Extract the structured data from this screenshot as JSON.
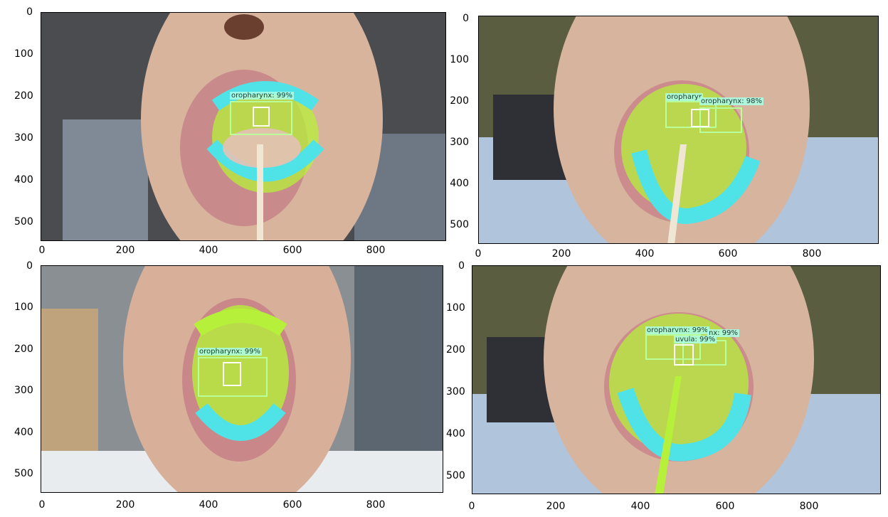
{
  "figure": {
    "panels": [
      {
        "id": "top-left",
        "x_ticks": [
          "0",
          "200",
          "400",
          "600",
          "800"
        ],
        "y_ticks": [
          "0",
          "100",
          "200",
          "300",
          "400",
          "500"
        ],
        "detections": [
          {
            "label": "oropharynx: 99%"
          }
        ]
      },
      {
        "id": "top-right",
        "x_ticks": [
          "0",
          "200",
          "400",
          "600",
          "800"
        ],
        "y_ticks": [
          "0",
          "100",
          "200",
          "300",
          "400",
          "500"
        ],
        "detections": [
          {
            "label": "oropharyr"
          },
          {
            "label": "oropharynx: 98%"
          }
        ]
      },
      {
        "id": "bottom-left",
        "x_ticks": [
          "0",
          "200",
          "400",
          "600",
          "800"
        ],
        "y_ticks": [
          "0",
          "100",
          "200",
          "300",
          "400",
          "500"
        ],
        "detections": [
          {
            "label": "oropharynx: 99%"
          }
        ]
      },
      {
        "id": "bottom-right",
        "x_ticks": [
          "0",
          "200",
          "400",
          "600",
          "800"
        ],
        "y_ticks": [
          "0",
          "100",
          "200",
          "300",
          "400",
          "500"
        ],
        "detections": [
          {
            "label": "oropharvnx: 99%"
          },
          {
            "label": "nx: 99%"
          },
          {
            "label": "uvula: 99%"
          }
        ]
      }
    ],
    "colors": {
      "mouth_mask": "#b6f03a",
      "teeth_mask": "#4fe3e8",
      "box_outline": "#b9ff9a",
      "label_bg": "#aaffe6",
      "skin": "#d9b49d"
    }
  }
}
